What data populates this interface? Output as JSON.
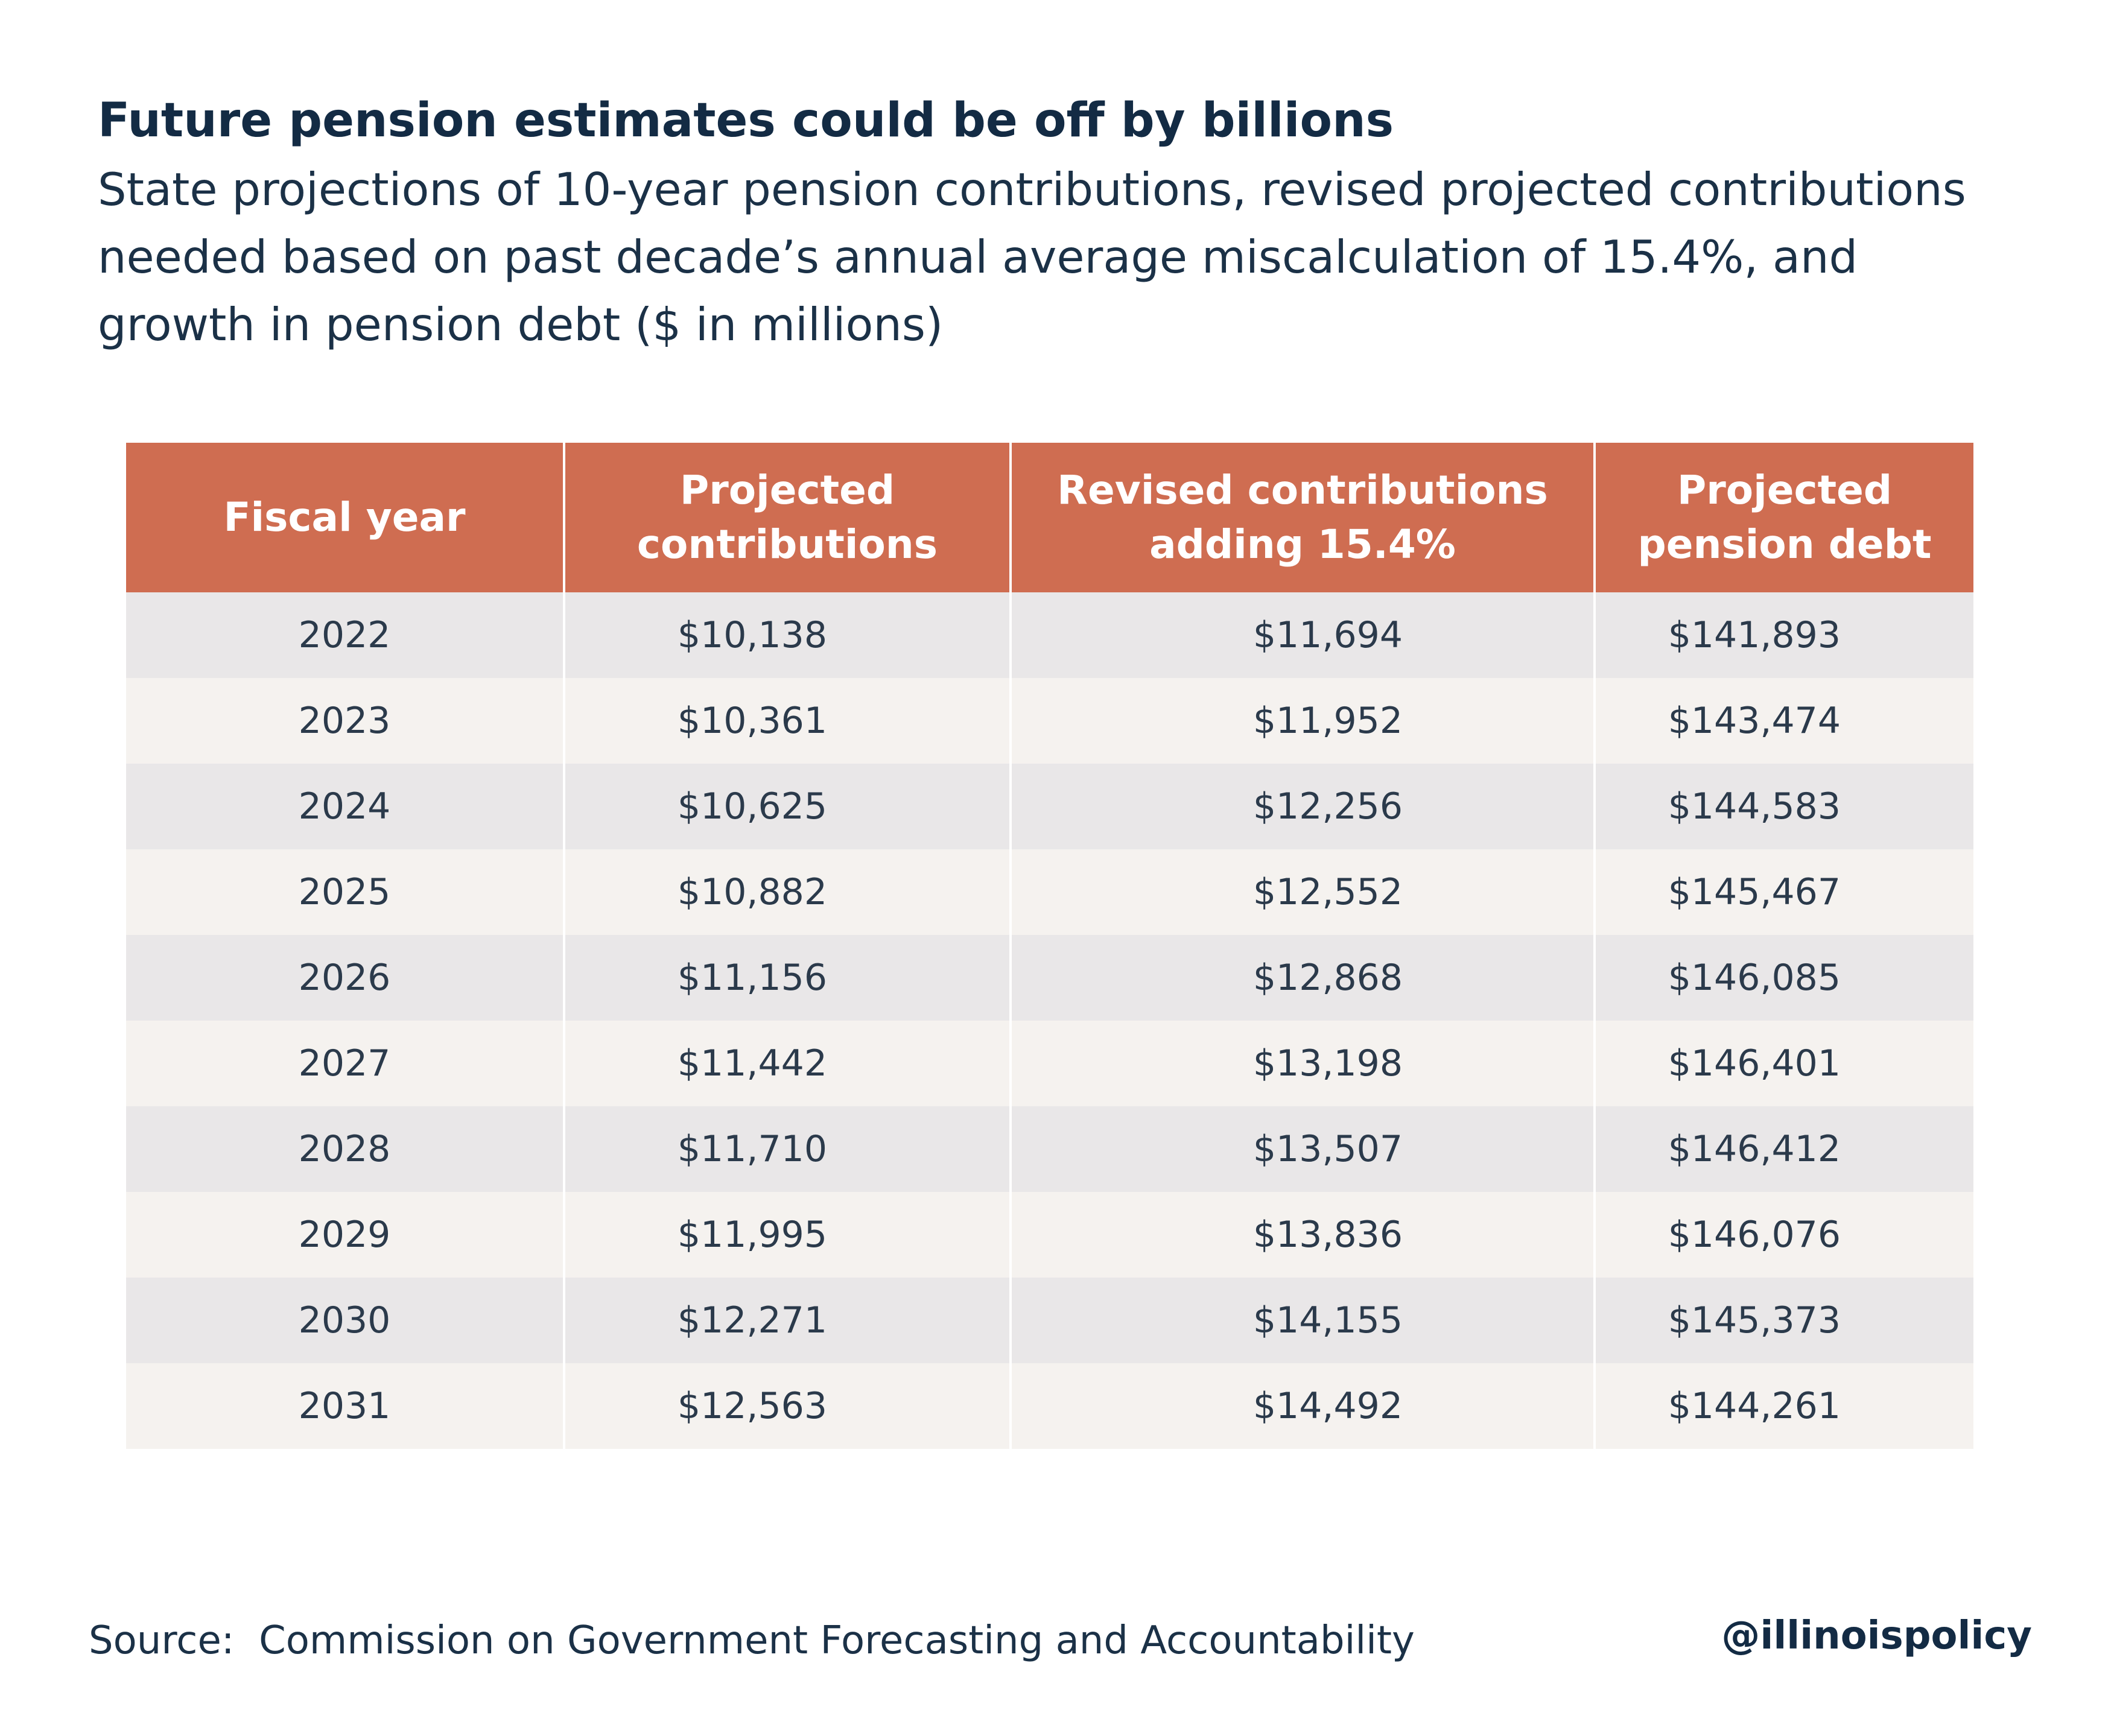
{
  "title": "Future pension estimates could be off by billions",
  "subtitle": "State projections of 10-year pension contributions, revised projected contributions needed based on past decade’s annual average miscalculation of 15.4%, and growth in pension debt ($ in millions)",
  "source": "Source:  Commission on Government Forecasting and Accountability",
  "handle": "@illinoispolicy",
  "colors": {
    "header_bg": "#cf6d51",
    "row_odd": "#e9e7e8",
    "row_even": "#f5f2ef",
    "title": "#132b44"
  },
  "chart_data": {
    "type": "table",
    "title": "Future pension estimates could be off by billions",
    "subtitle": "State projections of 10-year pension contributions, revised projected contributions needed based on past decade’s annual average miscalculation of 15.4%, and growth in pension debt ($ in millions)",
    "columns": [
      "Fiscal year",
      "Projected\ncontributions",
      "Revised contributions\nadding 15.4%",
      "Projected\npension debt"
    ],
    "rows": [
      [
        "2022",
        "$10,138",
        "$11,694",
        "$141,893"
      ],
      [
        "2023",
        "$10,361",
        "$11,952",
        "$143,474"
      ],
      [
        "2024",
        "$10,625",
        "$12,256",
        "$144,583"
      ],
      [
        "2025",
        "$10,882",
        "$12,552",
        "$145,467"
      ],
      [
        "2026",
        "$11,156",
        "$12,868",
        "$146,085"
      ],
      [
        "2027",
        "$11,442",
        "$13,198",
        "$146,401"
      ],
      [
        "2028",
        "$11,710",
        "$13,507",
        "$146,412"
      ],
      [
        "2029",
        "$11,995",
        "$13,836",
        "$146,076"
      ],
      [
        "2030",
        "$12,271",
        "$14,155",
        "$145,373"
      ],
      [
        "2031",
        "$12,563",
        "$14,492",
        "$144,261"
      ]
    ]
  }
}
